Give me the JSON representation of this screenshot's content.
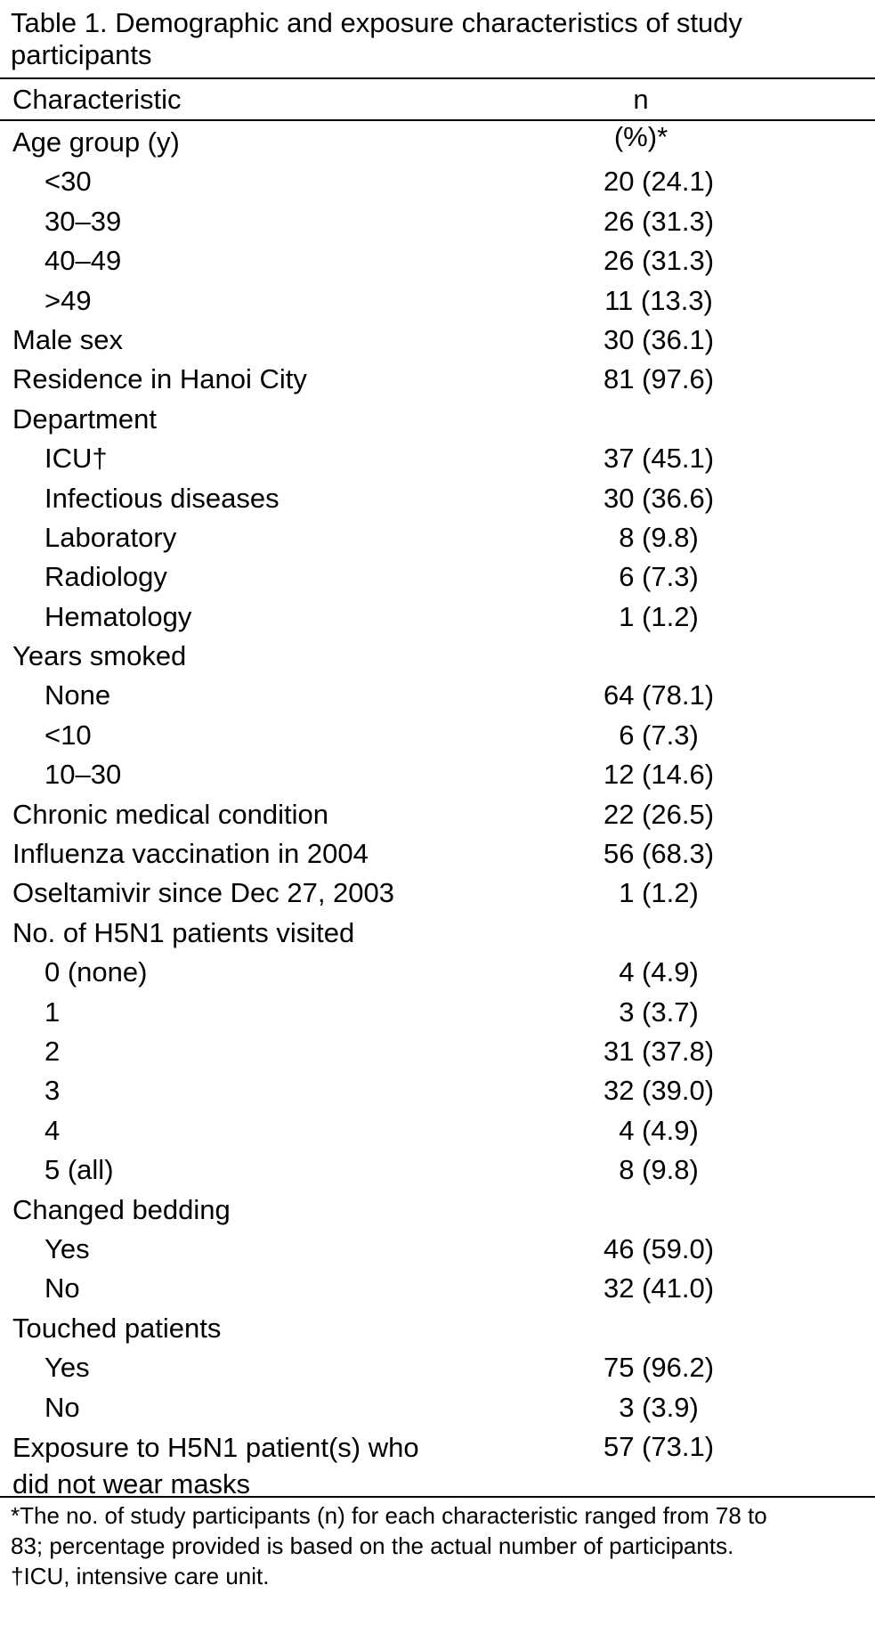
{
  "title": "Table 1. Demographic and exposure characteristics of study participants",
  "columns": {
    "characteristic": "Characteristic",
    "n_pct": "n (%)*"
  },
  "rows": [
    {
      "label": "Age group (y)",
      "value": "",
      "indent": false
    },
    {
      "label": "<30",
      "value": "20 (24.1)",
      "indent": true
    },
    {
      "label": "30–39",
      "value": "26 (31.3)",
      "indent": true
    },
    {
      "label": "40–49",
      "value": "26 (31.3)",
      "indent": true
    },
    {
      "label": ">49",
      "value": "11 (13.3)",
      "indent": true
    },
    {
      "label": "Male sex",
      "value": "30 (36.1)",
      "indent": false
    },
    {
      "label": "Residence in Hanoi City",
      "value": "81 (97.6)",
      "indent": false
    },
    {
      "label": "Department",
      "value": "",
      "indent": false
    },
    {
      "label": "ICU†",
      "value": "37 (45.1)",
      "indent": true
    },
    {
      "label": "Infectious diseases",
      "value": "30 (36.6)",
      "indent": true
    },
    {
      "label": "Laboratory",
      "value": "8 (9.8)",
      "indent": true
    },
    {
      "label": "Radiology",
      "value": "6 (7.3)",
      "indent": true
    },
    {
      "label": "Hematology",
      "value": "1 (1.2)",
      "indent": true
    },
    {
      "label": "Years smoked",
      "value": "",
      "indent": false
    },
    {
      "label": "None",
      "value": "64 (78.1)",
      "indent": true
    },
    {
      "label": "<10",
      "value": "6 (7.3)",
      "indent": true
    },
    {
      "label": "10–30",
      "value": "12 (14.6)",
      "indent": true
    },
    {
      "label": "Chronic medical condition",
      "value": "22 (26.5)",
      "indent": false
    },
    {
      "label": "Influenza vaccination in 2004",
      "value": "56 (68.3)",
      "indent": false
    },
    {
      "label": "Oseltamivir since Dec 27, 2003",
      "value": "1 (1.2)",
      "indent": false
    },
    {
      "label": "No. of H5N1 patients visited",
      "value": "",
      "indent": false
    },
    {
      "label": "0 (none)",
      "value": "4 (4.9)",
      "indent": true
    },
    {
      "label": "1",
      "value": "3 (3.7)",
      "indent": true
    },
    {
      "label": "2",
      "value": "31 (37.8)",
      "indent": true
    },
    {
      "label": "3",
      "value": "32 (39.0)",
      "indent": true
    },
    {
      "label": "4",
      "value": "4 (4.9)",
      "indent": true
    },
    {
      "label": "5 (all)",
      "value": "8 (9.8)",
      "indent": true
    },
    {
      "label": "Changed bedding",
      "value": "",
      "indent": false
    },
    {
      "label": "Yes",
      "value": "46 (59.0)",
      "indent": true
    },
    {
      "label": "No",
      "value": "32 (41.0)",
      "indent": true
    },
    {
      "label": "Touched patients",
      "value": "",
      "indent": false
    },
    {
      "label": "Yes",
      "value": "75 (96.2)",
      "indent": true
    },
    {
      "label": "No",
      "value": "3 (3.9)",
      "indent": true
    }
  ],
  "last_row": {
    "label_line1": "Exposure to H5N1 patient(s) who",
    "label_line2": "did not wear masks",
    "value": "57 (73.1)"
  },
  "footnotes": [
    "*The no. of study participants (n) for each characteristic ranged from 78 to",
    "83; percentage provided is based on the actual number of participants.",
    "†ICU, intensive care unit."
  ]
}
